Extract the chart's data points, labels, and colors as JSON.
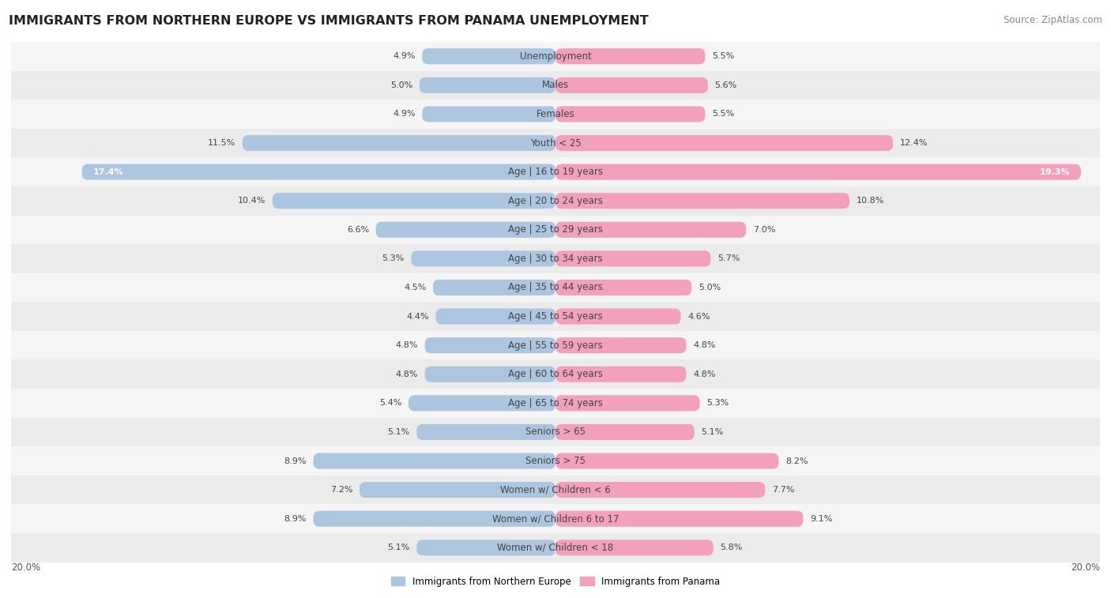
{
  "title": "IMMIGRANTS FROM NORTHERN EUROPE VS IMMIGRANTS FROM PANAMA UNEMPLOYMENT",
  "source": "Source: ZipAtlas.com",
  "categories": [
    "Unemployment",
    "Males",
    "Females",
    "Youth < 25",
    "Age | 16 to 19 years",
    "Age | 20 to 24 years",
    "Age | 25 to 29 years",
    "Age | 30 to 34 years",
    "Age | 35 to 44 years",
    "Age | 45 to 54 years",
    "Age | 55 to 59 years",
    "Age | 60 to 64 years",
    "Age | 65 to 74 years",
    "Seniors > 65",
    "Seniors > 75",
    "Women w/ Children < 6",
    "Women w/ Children 6 to 17",
    "Women w/ Children < 18"
  ],
  "left_values": [
    4.9,
    5.0,
    4.9,
    11.5,
    17.4,
    10.4,
    6.6,
    5.3,
    4.5,
    4.4,
    4.8,
    4.8,
    5.4,
    5.1,
    8.9,
    7.2,
    8.9,
    5.1
  ],
  "right_values": [
    5.5,
    5.6,
    5.5,
    12.4,
    19.3,
    10.8,
    7.0,
    5.7,
    5.0,
    4.6,
    4.8,
    4.8,
    5.3,
    5.1,
    8.2,
    7.7,
    9.1,
    5.8
  ],
  "left_color": "#adc6e0",
  "right_color": "#f2a0bb",
  "row_colors": [
    "#f5f5f5",
    "#ebebeb"
  ],
  "axis_max": 20.0,
  "legend_left": "Immigrants from Northern Europe",
  "legend_right": "Immigrants from Panama",
  "title_fontsize": 11.5,
  "source_fontsize": 8.5,
  "label_fontsize": 8.5,
  "value_fontsize": 8.0,
  "axis_label_fontsize": 8.5,
  "inside_label_threshold": 15.0
}
